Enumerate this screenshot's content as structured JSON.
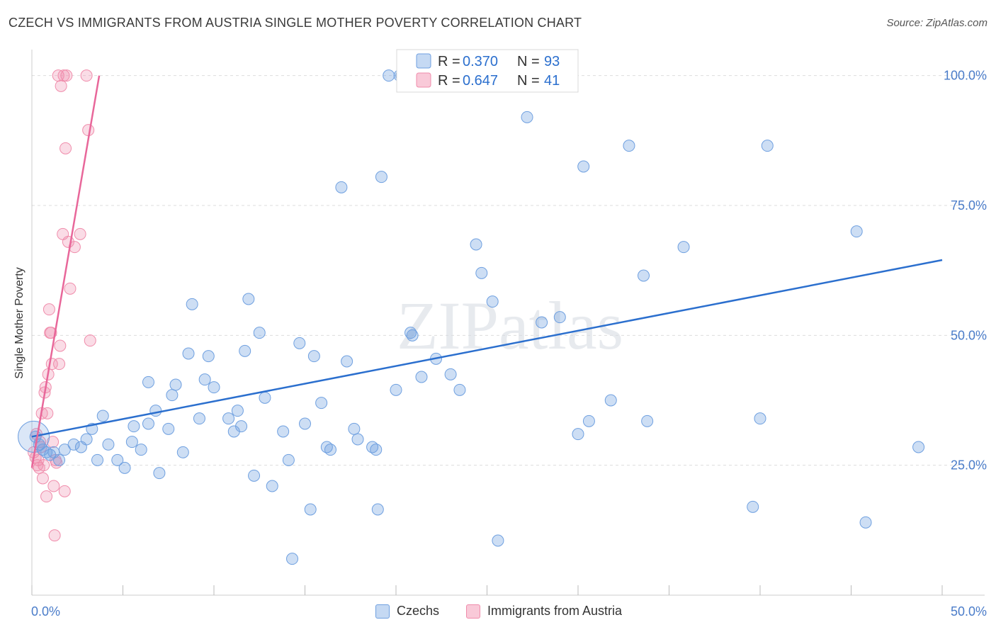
{
  "chart_data": {
    "type": "scatter",
    "title": "CZECH VS IMMIGRANTS FROM AUSTRIA SINGLE MOTHER POVERTY CORRELATION CHART",
    "source": "Source: ZipAtlas.com",
    "xlabel": "",
    "ylabel": "Single Mother Poverty",
    "xlim": [
      0,
      50
    ],
    "ylim": [
      0,
      105
    ],
    "x_tick_labels": [
      "0.0%",
      "50.0%"
    ],
    "y_ticks": [
      25,
      50,
      75,
      100
    ],
    "y_tick_labels": [
      "25.0%",
      "50.0%",
      "75.0%",
      "100.0%"
    ],
    "watermark": "ZIPatlas",
    "colors": {
      "czechs": "#6fa0e0",
      "austria": "#f08cab",
      "czechs_line": "#2b6fce",
      "austria_line": "#e8679a"
    },
    "legend": [
      {
        "r_label": "R =",
        "r_value": "0.370",
        "n_label": "N =",
        "n_value": "93"
      },
      {
        "r_label": "R =",
        "r_value": "0.647",
        "n_label": "N =",
        "n_value": "41"
      }
    ],
    "series": [
      {
        "name": "Czechs",
        "trend": {
          "x": [
            0,
            50
          ],
          "y": [
            30.5,
            64.5
          ]
        },
        "points": [
          [
            0.2,
            30.5
          ],
          [
            0.4,
            29.0
          ],
          [
            0.6,
            28.0
          ],
          [
            0.8,
            27.5
          ],
          [
            1.0,
            27.0
          ],
          [
            1.2,
            27.5
          ],
          [
            1.5,
            26.0
          ],
          [
            1.8,
            28.0
          ],
          [
            2.3,
            29.0
          ],
          [
            2.7,
            28.5
          ],
          [
            3.0,
            30.0
          ],
          [
            3.3,
            32.0
          ],
          [
            3.6,
            26.0
          ],
          [
            3.9,
            34.5
          ],
          [
            4.2,
            29.0
          ],
          [
            4.7,
            26.0
          ],
          [
            5.1,
            24.5
          ],
          [
            5.5,
            29.5
          ],
          [
            5.6,
            32.5
          ],
          [
            6.0,
            28.0
          ],
          [
            6.4,
            33.0
          ],
          [
            6.4,
            41.0
          ],
          [
            6.8,
            35.5
          ],
          [
            7.0,
            23.5
          ],
          [
            7.5,
            32.0
          ],
          [
            7.7,
            38.5
          ],
          [
            7.9,
            40.5
          ],
          [
            8.3,
            27.5
          ],
          [
            8.6,
            46.5
          ],
          [
            8.8,
            56.0
          ],
          [
            9.2,
            34.0
          ],
          [
            9.5,
            41.5
          ],
          [
            9.7,
            46.0
          ],
          [
            10.0,
            40.0
          ],
          [
            10.8,
            34.0
          ],
          [
            11.1,
            31.5
          ],
          [
            11.3,
            35.5
          ],
          [
            11.5,
            32.5
          ],
          [
            11.7,
            47.0
          ],
          [
            11.9,
            57.0
          ],
          [
            12.2,
            23.0
          ],
          [
            12.5,
            50.5
          ],
          [
            12.8,
            38.0
          ],
          [
            13.2,
            21.0
          ],
          [
            13.8,
            31.5
          ],
          [
            14.1,
            26.0
          ],
          [
            14.3,
            7.0
          ],
          [
            14.7,
            48.5
          ],
          [
            15.0,
            33.0
          ],
          [
            15.3,
            16.5
          ],
          [
            15.5,
            46.0
          ],
          [
            15.9,
            37.0
          ],
          [
            16.2,
            28.5
          ],
          [
            16.4,
            28.0
          ],
          [
            17.0,
            78.5
          ],
          [
            17.3,
            45.0
          ],
          [
            17.7,
            32.0
          ],
          [
            17.9,
            30.0
          ],
          [
            18.7,
            28.5
          ],
          [
            18.9,
            28.0
          ],
          [
            19.0,
            16.5
          ],
          [
            19.2,
            80.5
          ],
          [
            19.6,
            100.0
          ],
          [
            20.2,
            100.0
          ],
          [
            20.0,
            39.5
          ],
          [
            20.8,
            50.5
          ],
          [
            20.9,
            50.0
          ],
          [
            21.4,
            42.0
          ],
          [
            22.2,
            45.5
          ],
          [
            23.0,
            42.5
          ],
          [
            23.5,
            39.5
          ],
          [
            24.4,
            67.5
          ],
          [
            24.7,
            62.0
          ],
          [
            25.3,
            56.5
          ],
          [
            25.6,
            10.5
          ],
          [
            27.2,
            92.0
          ],
          [
            28.0,
            52.5
          ],
          [
            29.0,
            53.5
          ],
          [
            30.0,
            31.0
          ],
          [
            30.3,
            82.5
          ],
          [
            30.6,
            33.5
          ],
          [
            31.8,
            37.5
          ],
          [
            32.8,
            86.5
          ],
          [
            33.6,
            61.5
          ],
          [
            33.8,
            33.5
          ],
          [
            35.8,
            67.0
          ],
          [
            39.6,
            17.0
          ],
          [
            40.0,
            34.0
          ],
          [
            40.4,
            86.5
          ],
          [
            45.3,
            70.0
          ],
          [
            45.8,
            14.0
          ],
          [
            48.7,
            28.5
          ],
          [
            20.3,
            100.0
          ]
        ]
      },
      {
        "name": "Immigrants from Austria",
        "trend": {
          "x": [
            0,
            3.7
          ],
          "y": [
            24.5,
            100
          ]
        },
        "points": [
          [
            0.1,
            27.5
          ],
          [
            0.2,
            26.5
          ],
          [
            0.25,
            31.0
          ],
          [
            0.3,
            25.0
          ],
          [
            0.35,
            26.0
          ],
          [
            0.4,
            24.5
          ],
          [
            0.45,
            29.5
          ],
          [
            0.5,
            28.5
          ],
          [
            0.55,
            35.0
          ],
          [
            0.6,
            22.5
          ],
          [
            0.65,
            25.0
          ],
          [
            0.7,
            39.0
          ],
          [
            0.75,
            40.0
          ],
          [
            0.8,
            19.0
          ],
          [
            0.85,
            35.0
          ],
          [
            0.9,
            42.5
          ],
          [
            0.95,
            55.0
          ],
          [
            1.0,
            50.5
          ],
          [
            1.05,
            50.5
          ],
          [
            1.1,
            44.5
          ],
          [
            1.15,
            29.5
          ],
          [
            1.2,
            21.0
          ],
          [
            1.25,
            11.5
          ],
          [
            1.3,
            26.0
          ],
          [
            1.35,
            25.5
          ],
          [
            1.45,
            100.0
          ],
          [
            1.55,
            48.0
          ],
          [
            1.6,
            98.0
          ],
          [
            1.7,
            69.5
          ],
          [
            1.75,
            100.0
          ],
          [
            1.8,
            20.0
          ],
          [
            1.85,
            86.0
          ],
          [
            1.9,
            100.0
          ],
          [
            2.0,
            68.0
          ],
          [
            2.1,
            59.0
          ],
          [
            2.35,
            67.0
          ],
          [
            2.65,
            69.5
          ],
          [
            3.0,
            100.0
          ],
          [
            3.1,
            89.5
          ],
          [
            3.2,
            49.0
          ],
          [
            1.5,
            44.5
          ]
        ]
      }
    ]
  }
}
